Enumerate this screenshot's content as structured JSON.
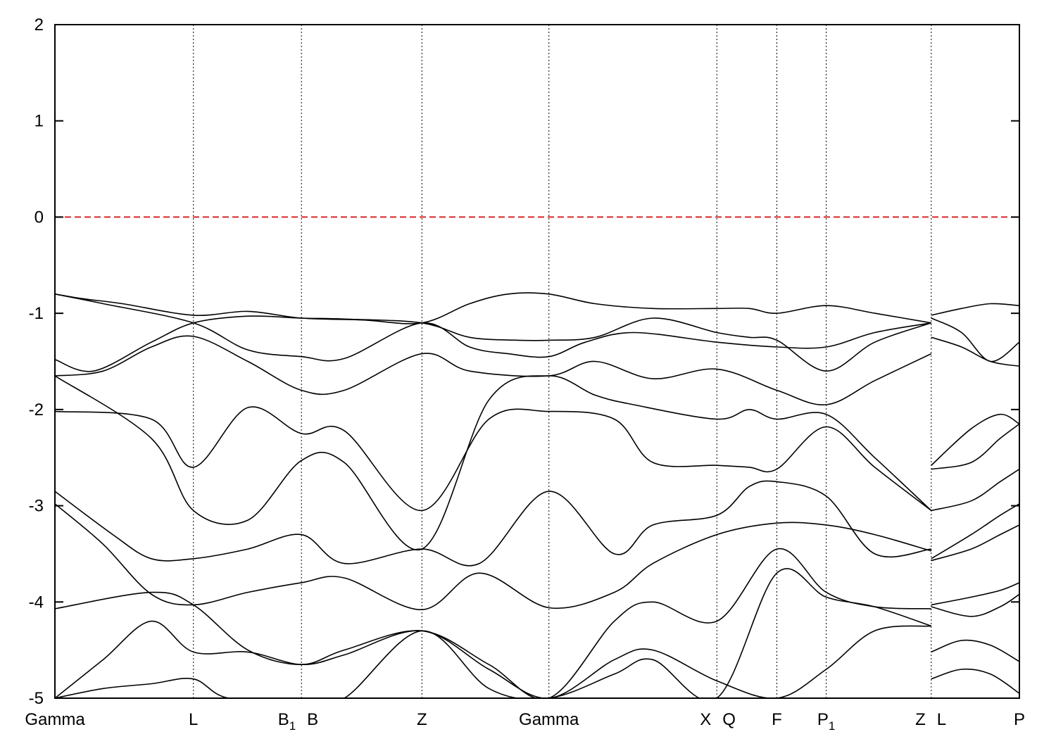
{
  "chart_data": {
    "type": "line",
    "title": "",
    "xlabel": "",
    "ylabel": "",
    "ylim": [
      -5,
      2
    ],
    "yticks": [
      -5,
      -4,
      -3,
      -2,
      -1,
      0,
      1,
      2
    ],
    "xlim": [
      0,
      1
    ],
    "grid": "vertical dotted lines at high-symmetry points",
    "reference_line": {
      "y": 0,
      "color": "#d62728",
      "style": "dashed"
    },
    "kpoints": [
      {
        "label": "Gamma",
        "sub": "",
        "x": 0.0
      },
      {
        "label": "L",
        "sub": "",
        "x": 0.1436
      },
      {
        "label": "B",
        "sub": "1",
        "x": 0.2556
      },
      {
        "label": "B",
        "sub": "",
        "x": 0.2556
      },
      {
        "label": "Z",
        "sub": "",
        "x": 0.3805
      },
      {
        "label": "Gamma",
        "sub": "",
        "x": 0.5122
      },
      {
        "label": "X",
        "sub": "",
        "x": 0.6863
      },
      {
        "label": "Q",
        "sub": "",
        "x": 0.6863
      },
      {
        "label": "F",
        "sub": "",
        "x": 0.7485
      },
      {
        "label": "P",
        "sub": "1",
        "x": 0.7997
      },
      {
        "label": "Z",
        "sub": "",
        "x": 0.9086
      },
      {
        "label": "L",
        "sub": "",
        "x": 0.9086
      },
      {
        "label": "P",
        "sub": "",
        "x": 1.0
      }
    ],
    "bands": [
      {
        "x": [
          0,
          0.03,
          0.07,
          0.1436,
          0.2,
          0.2556,
          0.32,
          0.3805,
          0.43,
          0.47,
          0.5122,
          0.56,
          0.62,
          0.6863,
          0.72,
          0.7485,
          0.7997,
          0.85,
          0.9086
        ],
        "y": [
          -0.8,
          -0.85,
          -0.9,
          -1.02,
          -0.98,
          -1.05,
          -1.07,
          -1.1,
          -0.9,
          -0.8,
          -0.8,
          -0.9,
          -0.95,
          -0.95,
          -0.95,
          -1.0,
          -0.92,
          -1.0,
          -1.1
        ]
      },
      {
        "x": [
          0,
          0.05,
          0.1436,
          0.2,
          0.2556,
          0.3,
          0.3805,
          0.43,
          0.47,
          0.5122,
          0.55,
          0.6,
          0.6863,
          0.7485,
          0.7997,
          0.85,
          0.9086
        ],
        "y": [
          -0.8,
          -0.9,
          -1.1,
          -1.38,
          -1.45,
          -1.47,
          -1.1,
          -1.35,
          -1.42,
          -1.45,
          -1.3,
          -1.2,
          -1.3,
          -1.35,
          -1.35,
          -1.2,
          -1.1
        ]
      },
      {
        "x": [
          0,
          0.04,
          0.1,
          0.1436,
          0.2,
          0.2556,
          0.3,
          0.3805,
          0.43,
          0.48,
          0.5122,
          0.56,
          0.62,
          0.6863,
          0.72,
          0.7485,
          0.7997,
          0.85,
          0.9086
        ],
        "y": [
          -1.48,
          -1.6,
          -1.3,
          -1.1,
          -1.03,
          -1.05,
          -1.06,
          -1.1,
          -1.25,
          -1.28,
          -1.28,
          -1.25,
          -1.05,
          -1.2,
          -1.25,
          -1.28,
          -1.6,
          -1.3,
          -1.1
        ]
      },
      {
        "x": [
          0,
          0.05,
          0.1,
          0.1436,
          0.2,
          0.2556,
          0.3,
          0.3805,
          0.43,
          0.5122,
          0.56,
          0.62,
          0.6863,
          0.7485,
          0.7997,
          0.85,
          0.9086
        ],
        "y": [
          -1.65,
          -1.6,
          -1.35,
          -1.24,
          -1.5,
          -1.8,
          -1.8,
          -1.42,
          -1.6,
          -1.65,
          -1.5,
          -1.68,
          -1.58,
          -1.8,
          -1.95,
          -1.7,
          -1.42
        ]
      },
      {
        "x": [
          0,
          0.1,
          0.1436,
          0.2,
          0.2556,
          0.3,
          0.3805,
          0.45,
          0.5122,
          0.58,
          0.62,
          0.6863,
          0.72,
          0.7485,
          0.7997,
          0.85,
          0.9086
        ],
        "y": [
          -2.02,
          -2.1,
          -2.6,
          -1.98,
          -2.25,
          -2.22,
          -3.05,
          -2.1,
          -2.02,
          -2.1,
          -2.55,
          -2.58,
          -2.6,
          -2.62,
          -2.18,
          -2.6,
          -3.05
        ]
      },
      {
        "x": [
          0,
          0.1,
          0.1436,
          0.2,
          0.2556,
          0.3,
          0.3805,
          0.45,
          0.5122,
          0.56,
          0.6,
          0.6863,
          0.72,
          0.7485,
          0.7997,
          0.85,
          0.9086
        ],
        "y": [
          -1.65,
          -2.3,
          -3.05,
          -3.15,
          -2.53,
          -2.55,
          -3.45,
          -1.9,
          -1.65,
          -1.85,
          -1.95,
          -2.1,
          -2.0,
          -2.1,
          -2.05,
          -2.5,
          -3.05
        ]
      },
      {
        "x": [
          0,
          0.06,
          0.1,
          0.1436,
          0.2,
          0.2556,
          0.3,
          0.3805,
          0.44,
          0.5122,
          0.58,
          0.62,
          0.6863,
          0.72,
          0.7485,
          0.7997,
          0.85,
          0.9086
        ],
        "y": [
          -2.85,
          -3.3,
          -3.55,
          -3.55,
          -3.45,
          -3.3,
          -3.6,
          -3.45,
          -3.6,
          -2.85,
          -3.5,
          -3.2,
          -3.1,
          -2.8,
          -2.75,
          -2.9,
          -3.5,
          -3.45
        ]
      },
      {
        "x": [
          0,
          0.05,
          0.1,
          0.1436,
          0.2,
          0.2556,
          0.3,
          0.3805,
          0.44,
          0.5122,
          0.58,
          0.62,
          0.6863,
          0.7485,
          0.7997,
          0.85,
          0.9086
        ],
        "y": [
          -2.98,
          -3.4,
          -3.92,
          -4.03,
          -3.9,
          -3.8,
          -3.75,
          -4.08,
          -3.7,
          -4.06,
          -3.9,
          -3.6,
          -3.3,
          -3.18,
          -3.2,
          -3.3,
          -3.47
        ]
      },
      {
        "x": [
          0,
          0.1,
          0.1436,
          0.2,
          0.2556,
          0.3,
          0.3805,
          0.45,
          0.5122,
          0.58,
          0.62,
          0.6863,
          0.7485,
          0.7997,
          0.85,
          0.9086
        ],
        "y": [
          -4.07,
          -3.9,
          -4.03,
          -4.5,
          -4.65,
          -4.5,
          -4.3,
          -4.65,
          -5.0,
          -4.2,
          -4.0,
          -4.2,
          -3.45,
          -3.9,
          -4.05,
          -4.07
        ]
      },
      {
        "x": [
          0,
          0.05,
          0.1,
          0.1436,
          0.2,
          0.2556,
          0.3,
          0.3805,
          0.45,
          0.5122,
          0.58,
          0.62,
          0.6863,
          0.7485,
          0.7997,
          0.85,
          0.9086
        ],
        "y": [
          -5.0,
          -4.6,
          -4.2,
          -4.52,
          -4.52,
          -4.65,
          -4.55,
          -4.3,
          -4.7,
          -5.0,
          -4.6,
          -4.5,
          -4.82,
          -5.0,
          -4.7,
          -4.3,
          -4.25
        ]
      },
      {
        "x": [
          0,
          0.05,
          0.1,
          0.1436,
          0.18,
          0.2556,
          0.3,
          0.3805,
          0.45,
          0.5122,
          0.58,
          0.62,
          0.6863,
          0.7485,
          0.7997,
          0.85,
          0.9086
        ],
        "y": [
          -5.0,
          -4.9,
          -4.85,
          -4.8,
          -5.0,
          -5.0,
          -5.0,
          -4.3,
          -4.9,
          -5.0,
          -4.75,
          -4.6,
          -5.0,
          -3.7,
          -3.95,
          -4.05,
          -4.25
        ]
      },
      {
        "x": [
          0.9086,
          0.94,
          0.97,
          1.0
        ],
        "y": [
          -1.02,
          -0.95,
          -0.9,
          -0.92
        ]
      },
      {
        "x": [
          0.9086,
          0.94,
          0.97,
          1.0
        ],
        "y": [
          -1.05,
          -1.2,
          -1.5,
          -1.3
        ]
      },
      {
        "x": [
          0.9086,
          0.94,
          0.97,
          1.0
        ],
        "y": [
          -1.25,
          -1.35,
          -1.5,
          -1.55
        ]
      },
      {
        "x": [
          0.9086,
          0.95,
          0.98,
          1.0
        ],
        "y": [
          -2.58,
          -2.2,
          -2.05,
          -2.15
        ]
      },
      {
        "x": [
          0.9086,
          0.95,
          0.98,
          1.0
        ],
        "y": [
          -2.62,
          -2.55,
          -2.3,
          -2.15
        ]
      },
      {
        "x": [
          0.9086,
          0.95,
          0.98,
          1.0
        ],
        "y": [
          -3.05,
          -2.95,
          -2.75,
          -2.62
        ]
      },
      {
        "x": [
          0.9086,
          0.95,
          0.98,
          1.0
        ],
        "y": [
          -3.55,
          -3.3,
          -3.1,
          -2.98
        ]
      },
      {
        "x": [
          0.9086,
          0.95,
          0.98,
          1.0
        ],
        "y": [
          -3.57,
          -3.45,
          -3.3,
          -3.2
        ]
      },
      {
        "x": [
          0.9086,
          0.95,
          0.98,
          1.0
        ],
        "y": [
          -4.03,
          -3.95,
          -3.88,
          -3.8
        ]
      },
      {
        "x": [
          0.9086,
          0.95,
          0.98,
          1.0
        ],
        "y": [
          -4.05,
          -4.15,
          -4.05,
          -3.92
        ]
      },
      {
        "x": [
          0.9086,
          0.94,
          0.97,
          1.0
        ],
        "y": [
          -4.52,
          -4.4,
          -4.45,
          -4.62
        ]
      },
      {
        "x": [
          0.9086,
          0.94,
          0.97,
          1.0
        ],
        "y": [
          -4.8,
          -4.7,
          -4.75,
          -4.95
        ]
      }
    ]
  }
}
